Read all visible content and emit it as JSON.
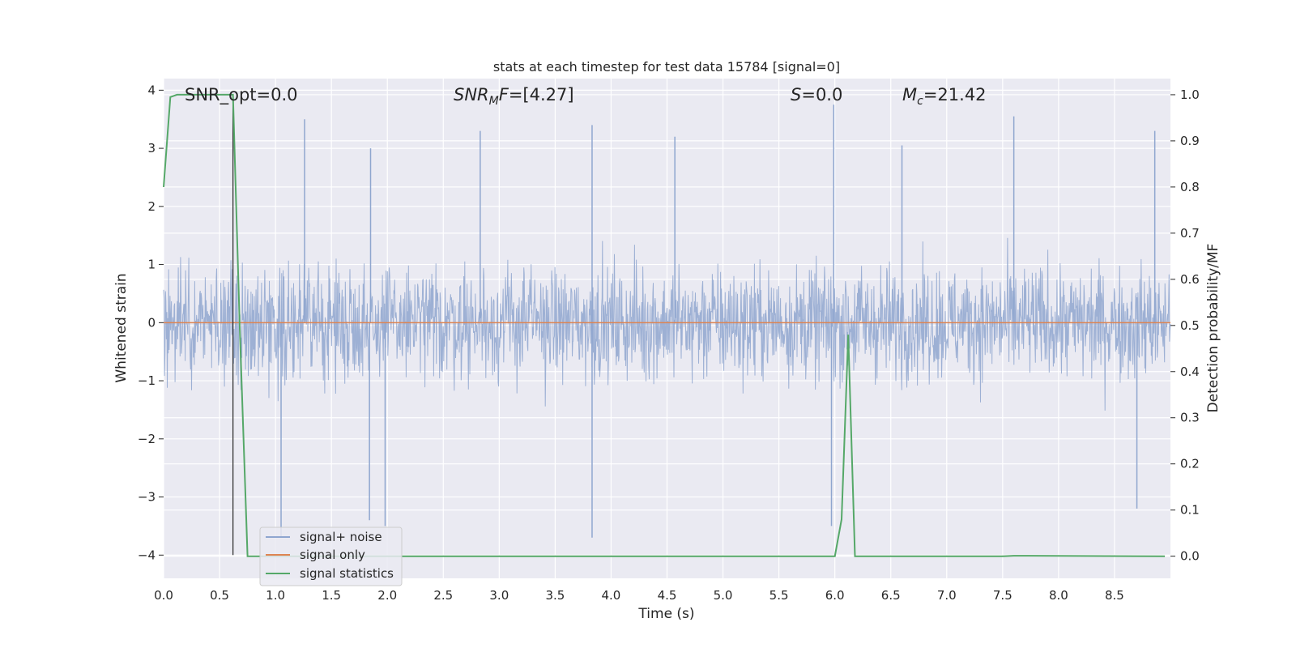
{
  "chart_data": {
    "type": "line",
    "title": "stats at each timestep for test data 15784 [signal=0]",
    "xlabel": "Time (s)",
    "ylabel": "Whitened strain",
    "ylabel_right": "Detection probability/MF",
    "xlim": [
      0.0,
      9.0
    ],
    "ylim": [
      -4.4,
      4.2
    ],
    "ylim_right": [
      -0.048,
      1.035
    ],
    "x_ticks": [
      "0.0",
      "0.5",
      "1.0",
      "1.5",
      "2.0",
      "2.5",
      "3.0",
      "3.5",
      "4.0",
      "4.5",
      "5.0",
      "5.5",
      "6.0",
      "6.5",
      "7.0",
      "7.5",
      "8.0",
      "8.5"
    ],
    "y_ticks": [
      "−4",
      "−3",
      "−2",
      "−1",
      "0",
      "1",
      "2",
      "3",
      "4"
    ],
    "y_right_ticks": [
      "0.0",
      "0.1",
      "0.2",
      "0.3",
      "0.4",
      "0.5",
      "0.6",
      "0.7",
      "0.8",
      "0.9",
      "1.0"
    ],
    "grid": true,
    "legend_position": "lower-left",
    "annotations": {
      "snr_opt": "SNR_opt=0.0",
      "snr_mf": "SNR_MF=[4.27]",
      "s": "S=0.0",
      "mc": "M_c=21.42"
    },
    "annotation_parts": {
      "snr_mf_base": "SNR",
      "snr_mf_sub": "M",
      "snr_mf_rest": "F=[4.27]",
      "s_base": "S",
      "s_rest": "=0.0",
      "mc_base": "M",
      "mc_sub": "c",
      "mc_rest": "=21.42"
    },
    "series": [
      {
        "name": "signal+ noise",
        "axis": "left",
        "color": "#8fa6cf",
        "description_only": "whitened noise, roughly ±1.7 band with spikes",
        "spikes": [
          {
            "x": 1.26,
            "y": 3.5
          },
          {
            "x": 1.85,
            "y": 3.0
          },
          {
            "x": 2.83,
            "y": 3.3
          },
          {
            "x": 3.83,
            "y": 3.4
          },
          {
            "x": 4.57,
            "y": 3.2
          },
          {
            "x": 5.99,
            "y": 3.75
          },
          {
            "x": 6.6,
            "y": 3.05
          },
          {
            "x": 7.6,
            "y": 3.55
          },
          {
            "x": 8.86,
            "y": 3.3
          },
          {
            "x": 1.05,
            "y": -3.7
          },
          {
            "x": 1.84,
            "y": -3.4
          },
          {
            "x": 1.98,
            "y": -3.5
          },
          {
            "x": 3.83,
            "y": -3.7
          },
          {
            "x": 5.97,
            "y": -3.5
          },
          {
            "x": 8.7,
            "y": -3.2
          }
        ]
      },
      {
        "name": "signal only",
        "axis": "left",
        "color": "#dd8452",
        "x": [
          0.0,
          9.0
        ],
        "y": [
          0.0,
          0.0
        ]
      },
      {
        "name": "signal statistics",
        "axis": "right",
        "color": "#55a868",
        "x": [
          0.0,
          0.06,
          0.12,
          0.6,
          0.62,
          0.68,
          0.75,
          6.0,
          6.06,
          6.12,
          6.18,
          7.5,
          7.6,
          8.95
        ],
        "y": [
          0.8,
          0.995,
          1.0,
          1.0,
          1.0,
          0.5,
          0.0,
          0.0,
          0.08,
          0.48,
          0.0,
          0.0,
          0.001,
          0.0
        ]
      }
    ],
    "marker_line": {
      "x": 0.62,
      "y_from": -4.0,
      "y_to": 3.75,
      "color": "#333333"
    }
  }
}
